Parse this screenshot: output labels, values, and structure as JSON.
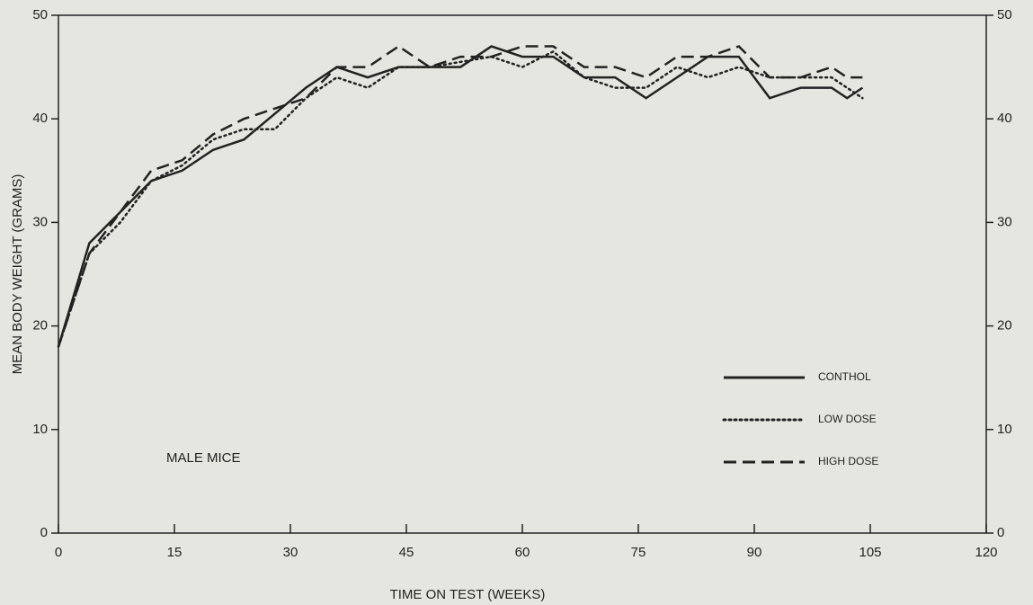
{
  "chart_data": {
    "type": "line",
    "xlabel": "TIME ON TEST (WEEKS)",
    "ylabel": "MEAN BODY WEIGHT (GRAMS)",
    "annotation": "MALE MICE",
    "x": [
      0,
      4,
      8,
      12,
      16,
      20,
      24,
      28,
      32,
      36,
      40,
      44,
      48,
      52,
      56,
      60,
      64,
      68,
      72,
      76,
      80,
      84,
      88,
      92,
      96,
      100,
      102,
      104
    ],
    "series": [
      {
        "name": "CONTHOL",
        "color": "#222222",
        "line_style": "solid",
        "values": [
          18,
          28,
          31,
          34,
          35,
          37,
          38,
          40.5,
          43,
          45,
          44,
          45,
          45,
          45,
          47,
          46,
          46,
          44,
          44,
          42,
          44,
          46,
          46,
          42,
          43,
          43,
          42,
          43
        ]
      },
      {
        "name": "LOW DOSE",
        "color": "#222222",
        "line_style": "dotted",
        "values": [
          18,
          27,
          30,
          34,
          35.5,
          38,
          39,
          39,
          42,
          44,
          43,
          45,
          45,
          45.5,
          46,
          45,
          46.5,
          44,
          43,
          43,
          45,
          44,
          45,
          44,
          44,
          44,
          43,
          42
        ]
      },
      {
        "name": "HIGH DOSE",
        "color": "#222222",
        "line_style": "dashed",
        "values": [
          18,
          27,
          31,
          35,
          36,
          38.5,
          40,
          41,
          42,
          45,
          45,
          47,
          45,
          46,
          46,
          47,
          47,
          45,
          45,
          44,
          46,
          46,
          47,
          44,
          44,
          45,
          44,
          44
        ]
      }
    ],
    "xlim": [
      0,
      120
    ],
    "xticks": [
      0,
      15,
      30,
      45,
      60,
      75,
      90,
      105,
      120
    ],
    "ylim": [
      0,
      50
    ],
    "yticks": [
      0,
      10,
      20,
      30,
      40,
      50
    ],
    "grid": false
  }
}
